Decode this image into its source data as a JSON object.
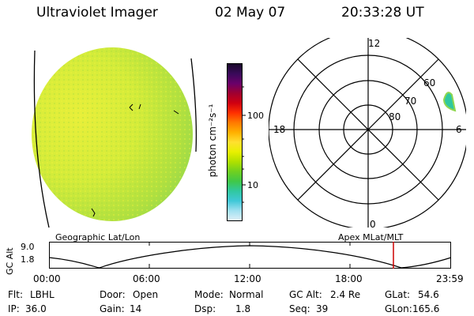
{
  "header": {
    "title": "Ultraviolet Imager",
    "date": "02 May 07",
    "time": "20:33:28 UT"
  },
  "colorbar": {
    "unit_label": "photon cm⁻²s⁻¹",
    "tick_100": "100",
    "tick_10": "10",
    "colors_top_to_bottom": [
      "#1a0a2a",
      "#3a0a5a",
      "#6a006a",
      "#a00030",
      "#d00010",
      "#ff3000",
      "#ff7a00",
      "#ffb000",
      "#ffe030",
      "#e8f000",
      "#b0e000",
      "#70d020",
      "#40c848",
      "#30c8a0",
      "#40c8d8",
      "#a0e0f0",
      "#e0f0f8"
    ]
  },
  "polar_plot": {
    "mlt_12": "12",
    "mlt_18": "18",
    "mlt_6": "6",
    "mlt_0": "0",
    "lat_60": "60",
    "lat_70": "70",
    "lat_80": "80"
  },
  "orbit_plot": {
    "left_title": "Geographic Lat/Lon",
    "right_title": "Apex MLat/MLT",
    "ylabel": "GC Alt",
    "y_top": "9.0",
    "y_bottom": "1.8",
    "x_ticks": [
      "00:00",
      "06:00",
      "12:00",
      "18:00",
      "23:59"
    ],
    "marker_color": "#cc0000"
  },
  "status": {
    "flt_label": "Flt:",
    "flt_value": "LBHL",
    "ip_label": "IP:",
    "ip_value": "36.0",
    "door_label": "Door:",
    "door_value": "Open",
    "gain_label": "Gain:",
    "gain_value": "14",
    "mode_label": "Mode:",
    "mode_value": "Normal",
    "dsp_label": "Dsp:",
    "dsp_value": "1.8",
    "gcalt_label": "GC Alt:",
    "gcalt_value": "2.4 Re",
    "seq_label": "Seq:",
    "seq_value": "39",
    "glat_label": "GLat:",
    "glat_value": "54.6",
    "glon_label": "GLon:",
    "glon_value": "165.6"
  }
}
